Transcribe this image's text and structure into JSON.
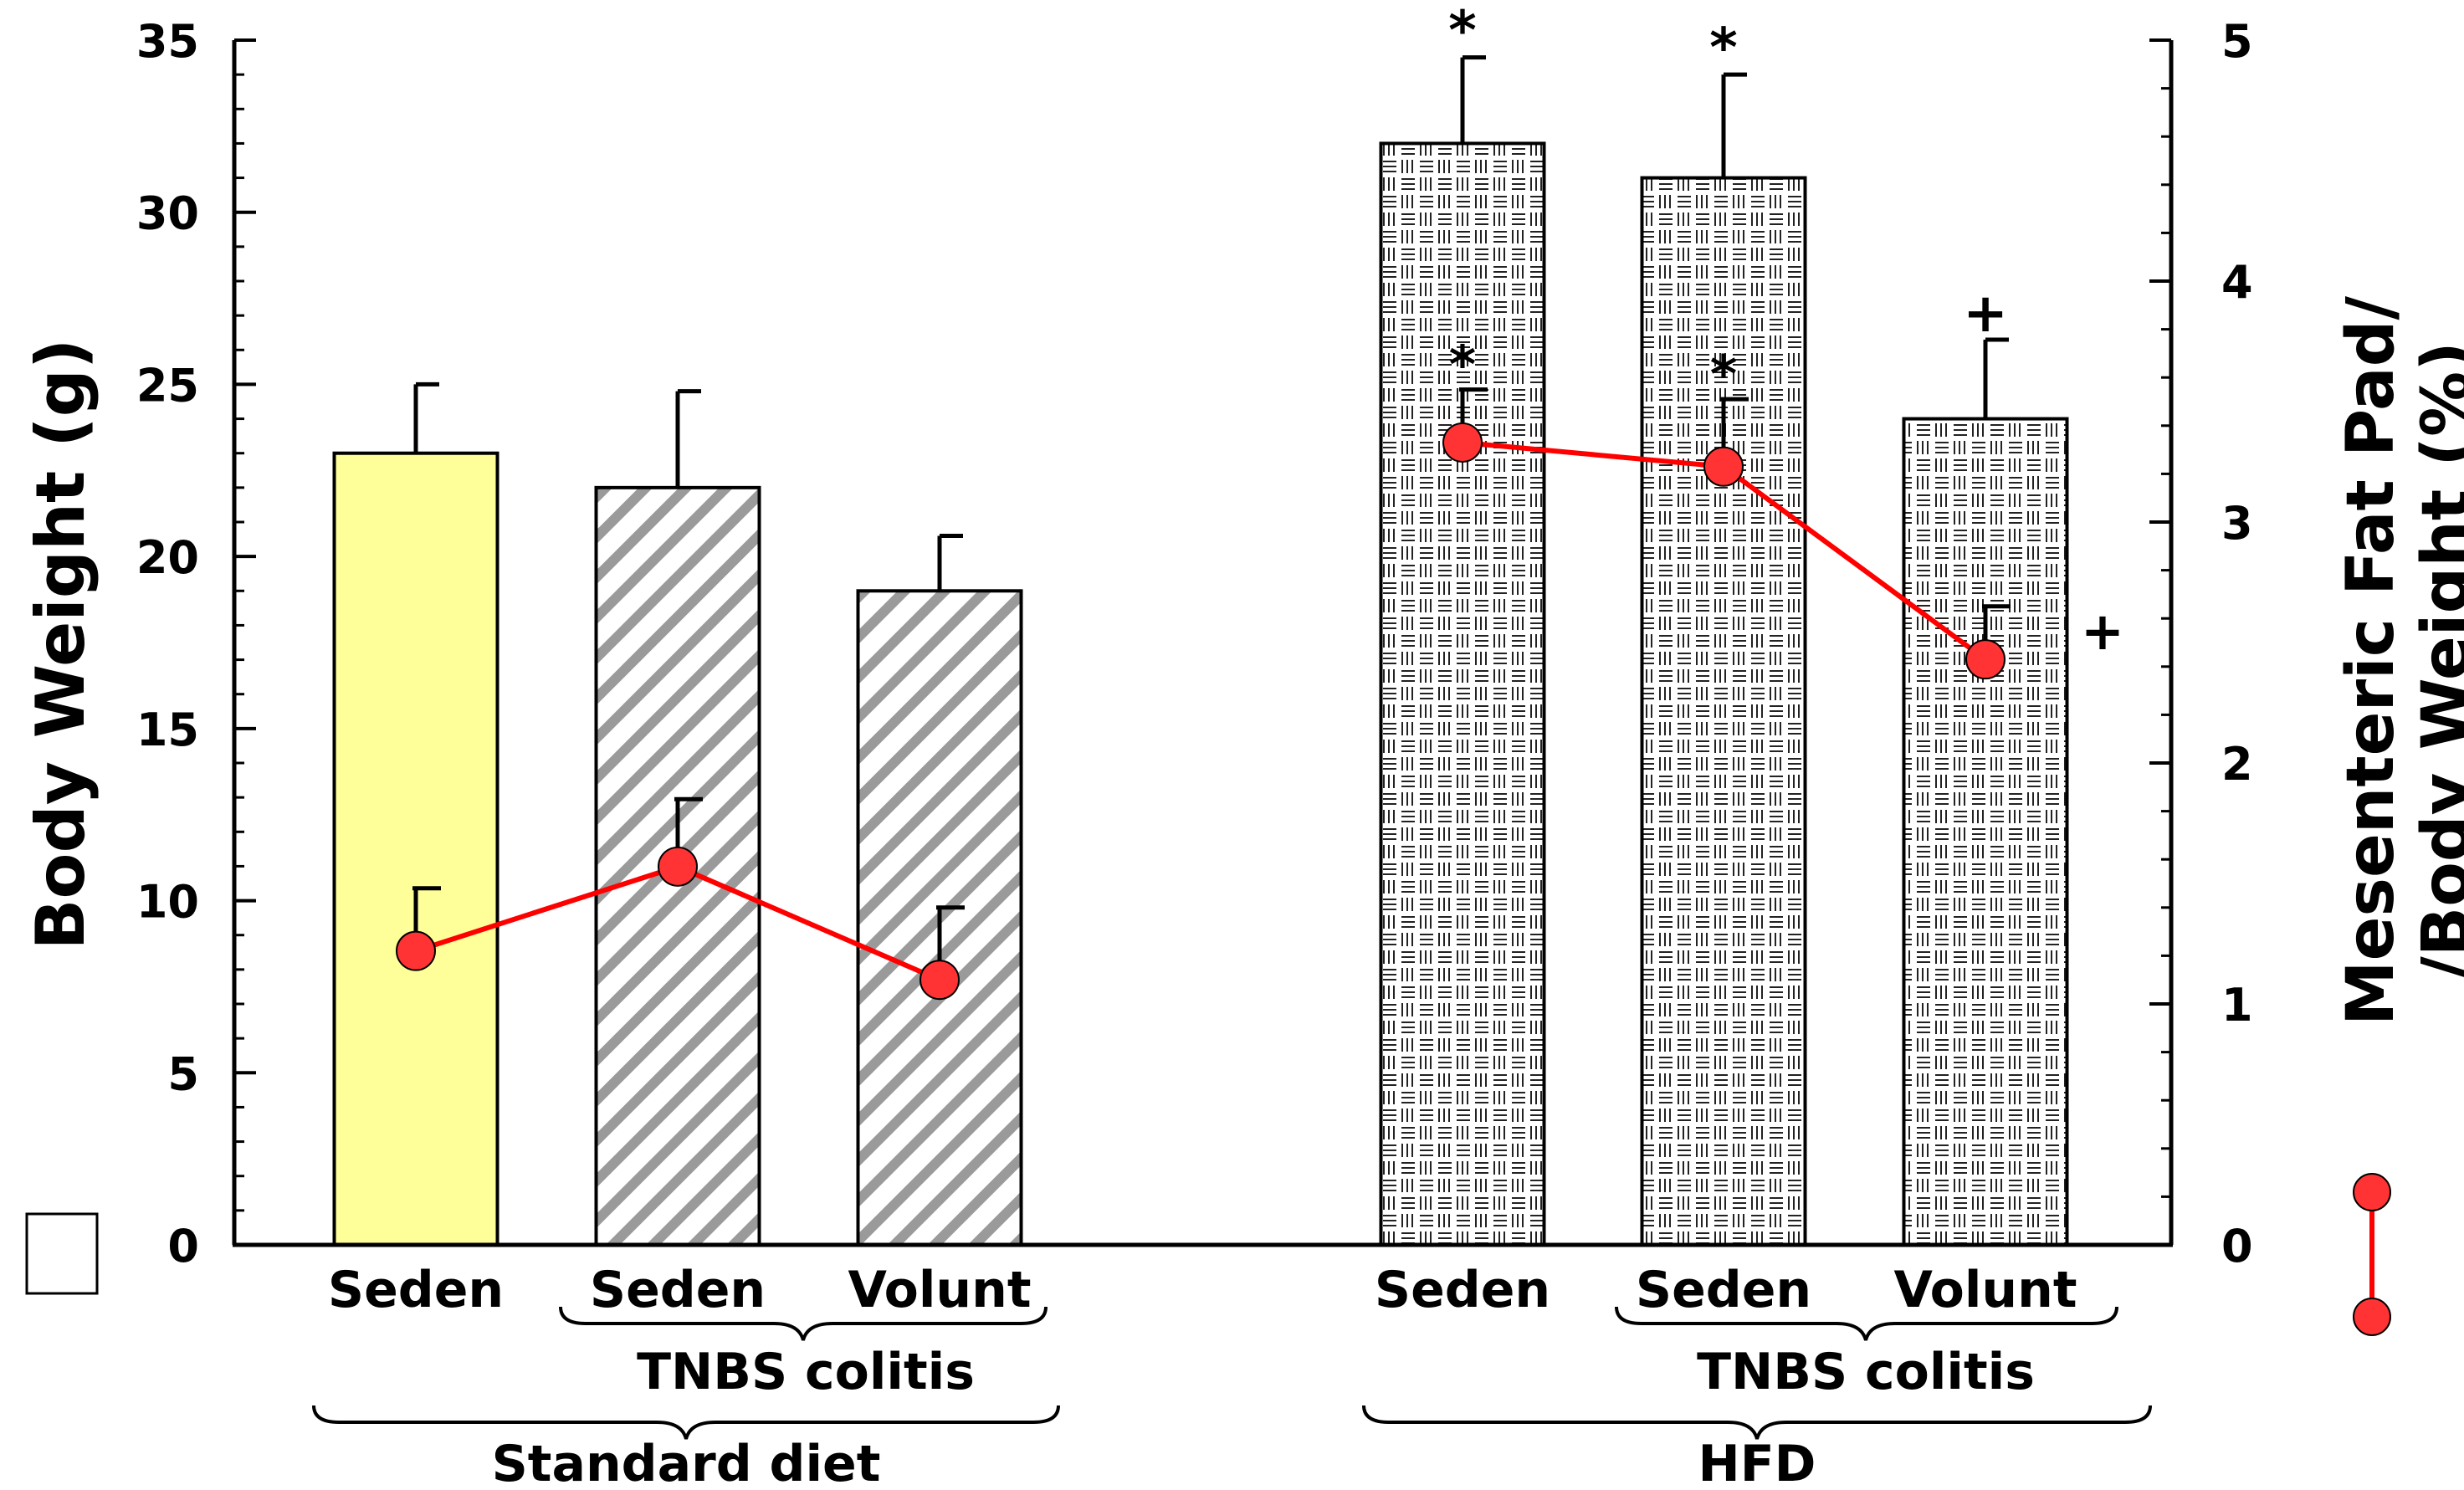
{
  "chart_data": {
    "type": "bar",
    "categories": [
      "Seden",
      "Seden",
      "Volunt",
      "Seden",
      "Seden",
      "Volunt"
    ],
    "left_axis": {
      "label": "Body Weight (g)",
      "ylim": [
        0,
        35
      ],
      "ticks": [
        "0",
        "5",
        "10",
        "15",
        "20",
        "25",
        "30",
        "35"
      ]
    },
    "right_axis": {
      "label_line1": "Mesenteric Fat Pad/",
      "label_line2": "/Body Weight (%)",
      "ylim": [
        0,
        5
      ],
      "ticks": [
        "0",
        "1",
        "2",
        "3",
        "4",
        "5"
      ]
    },
    "bars": {
      "values": [
        23,
        22,
        19,
        32,
        31,
        24
      ],
      "errors": [
        2,
        2.8,
        1.6,
        2.5,
        3,
        2.3
      ],
      "annotations": [
        "",
        "",
        "",
        "*",
        "*",
        "+"
      ],
      "colors": [
        "#ffff99",
        "#ffffff",
        "#ffffff",
        "#ffffff",
        "#ffffff",
        "#ffffff"
      ]
    },
    "line_series": {
      "axis": "right",
      "values": [
        1.22,
        1.57,
        1.1,
        3.33,
        3.23,
        2.43
      ],
      "errors": [
        0.26,
        0.28,
        0.3,
        0.22,
        0.28,
        0.22
      ],
      "annotations": [
        "",
        "",
        "",
        "*",
        "*",
        "+"
      ],
      "color": "#ff0000",
      "marker_fill": "#ff3333"
    },
    "group_labels": {
      "tnbs_left": "TNBS colitis",
      "tnbs_right": "TNBS colitis",
      "standard": "Standard diet",
      "hfd": "HFD"
    }
  }
}
